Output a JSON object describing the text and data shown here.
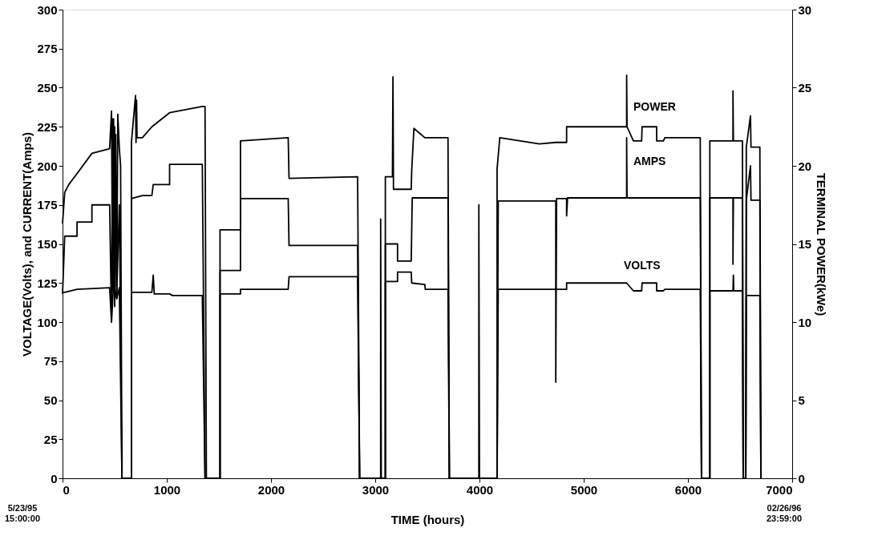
{
  "chart_data": {
    "type": "line",
    "xlabel": "TIME (hours)",
    "ylabel": "VOLTAGE(Volts), and CURRENT(Amps)",
    "y2label": "TERMINAL POWER(kWe)",
    "xlim": [
      0,
      7000
    ],
    "xticks": [
      0,
      1000,
      2000,
      3000,
      4000,
      5000,
      6000,
      7000
    ],
    "ylim": [
      0,
      300
    ],
    "yticks": [
      0,
      25,
      50,
      75,
      100,
      125,
      150,
      175,
      200,
      225,
      250,
      275,
      300
    ],
    "y2lim": [
      0,
      30
    ],
    "y2ticks": [
      0,
      5,
      10,
      15,
      20,
      25,
      30
    ],
    "grid": false,
    "legend": false,
    "marker": "none",
    "line_style": "solid",
    "annotations": [
      "5/23/95\n15:00:00",
      "02/26/96\n23:59:00"
    ],
    "series": [
      {
        "name": "POWER",
        "color": "#000000",
        "axis": "y2",
        "x": [
          0,
          21,
          60,
          139,
          282,
          452,
          470,
          480,
          490,
          500,
          510,
          520,
          530,
          545,
          557,
          570,
          661,
          661,
          700,
          705,
          710,
          715,
          766,
          857,
          1027,
          1341,
          1367,
          1380,
          1511,
          1511,
          1707,
          1707,
          2165,
          2173,
          2831,
          2850,
          3052,
          3052,
          3058,
          3097,
          3097,
          3165,
          3170,
          3175,
          3214,
          3345,
          3350,
          3371,
          3476,
          3698,
          3711,
          3994,
          3994,
          4000,
          4169,
          4169,
          4195,
          4575,
          4732,
          4836,
          4836,
          5412,
          5412,
          5416,
          5477,
          5556,
          5560,
          5700,
          5700,
          5765,
          5778,
          6118,
          6130,
          6210,
          6210,
          6432,
          6432,
          6436,
          6523,
          6530,
          6555,
          6560,
          6600,
          6605,
          6690,
          6700
        ],
        "values": [
          16.3,
          18.3,
          18.8,
          19.5,
          20.8,
          21.1,
          23.5,
          12,
          23,
          11,
          22,
          11.5,
          23.3,
          21.1,
          20,
          0,
          0,
          21.5,
          24.5,
          21.5,
          24.2,
          21.8,
          21.8,
          22.5,
          23.4,
          23.8,
          23.8,
          0,
          0,
          15.9,
          15.9,
          21.6,
          21.8,
          19.2,
          19.3,
          0,
          0,
          16.6,
          0,
          0,
          19.3,
          19.3,
          25.7,
          18.5,
          18.5,
          18.5,
          19.7,
          22.4,
          21.8,
          21.8,
          0,
          0,
          17.5,
          0,
          0,
          19.8,
          21.8,
          21.4,
          21.5,
          21.5,
          22.5,
          22.5,
          25.8,
          22.5,
          21.6,
          21.6,
          22.5,
          22.5,
          21.6,
          21.6,
          21.8,
          21.8,
          0,
          0,
          21.6,
          21.6,
          24.8,
          21.6,
          21.6,
          0,
          0,
          21.2,
          23.2,
          21.2,
          21.2,
          0
        ]
      },
      {
        "name": "AMPS",
        "color": "#000000",
        "x": [
          0,
          21,
          139,
          139,
          282,
          282,
          452,
          470,
          480,
          490,
          500,
          520,
          545,
          570,
          661,
          661,
          766,
          857,
          870,
          1027,
          1027,
          1341,
          1367,
          1511,
          1511,
          1707,
          1707,
          2165,
          2173,
          2831,
          2850,
          3097,
          3097,
          3214,
          3214,
          3345,
          3355,
          3698,
          3711,
          4169,
          4180,
          4732,
          4732,
          4740,
          4836,
          4836,
          4845,
          5412,
          5412,
          5416,
          6118,
          6130,
          6210,
          6210,
          6432,
          6432,
          6436,
          6523,
          6530,
          6555,
          6560,
          6600,
          6605,
          6690,
          6700
        ],
        "values": [
          118,
          155,
          155,
          164,
          164,
          175,
          175,
          100,
          230,
          120,
          225,
          118,
          175,
          0,
          0,
          179,
          181,
          181,
          188,
          188,
          201,
          201,
          0,
          0,
          133,
          133,
          179,
          179,
          149,
          149,
          0,
          0,
          150,
          150,
          139,
          139,
          179.5,
          179.5,
          0,
          0,
          177.5,
          177.5,
          61.5,
          179,
          179,
          168,
          179.5,
          179.5,
          218,
          179.5,
          179.5,
          0,
          0,
          179.5,
          179.5,
          137,
          179.5,
          179.5,
          0,
          0,
          178,
          200,
          178,
          178,
          0
        ]
      },
      {
        "name": "VOLTS",
        "color": "#000000",
        "x": [
          0,
          21,
          139,
          452,
          470,
          490,
          520,
          545,
          570,
          661,
          661,
          857,
          870,
          880,
          1027,
          1054,
          1341,
          1367,
          1511,
          1511,
          1707,
          1707,
          2165,
          2173,
          2831,
          2850,
          3097,
          3097,
          3214,
          3214,
          3345,
          3350,
          3476,
          3480,
          3698,
          3711,
          4169,
          4180,
          4836,
          4836,
          5412,
          5477,
          5556,
          5560,
          5700,
          5700,
          5765,
          5778,
          6118,
          6130,
          6210,
          6210,
          6432,
          6436,
          6440,
          6523,
          6530,
          6555,
          6560,
          6690,
          6700
        ],
        "values": [
          119,
          119,
          121,
          122,
          100,
          125,
          115,
          122,
          0,
          0,
          119,
          119,
          130,
          118,
          118,
          117,
          117,
          0,
          0,
          118,
          118,
          121,
          121,
          129,
          129,
          0,
          0,
          126,
          126,
          132,
          132,
          125,
          124,
          121,
          121,
          0,
          0,
          121,
          121,
          125,
          125,
          120,
          120,
          125,
          125,
          120,
          120,
          121,
          121,
          0,
          0,
          120,
          120,
          130,
          120,
          120,
          0,
          0,
          117,
          117,
          0
        ]
      }
    ]
  }
}
